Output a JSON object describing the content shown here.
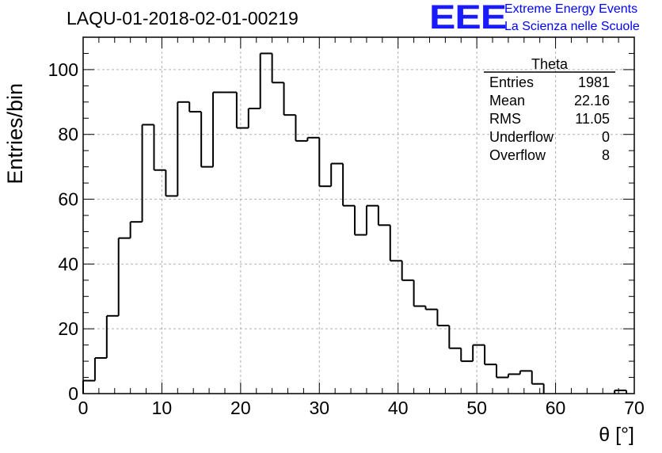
{
  "chart_data": {
    "type": "histogram",
    "title": "LAQU-01-2018-02-01-00219",
    "xlabel": "θ [°]",
    "ylabel": "Entries/bin",
    "xlim": [
      0,
      70
    ],
    "ylim": [
      0,
      110
    ],
    "bin_width": 1.5,
    "bin_start": 0,
    "values": [
      4,
      11,
      24,
      48,
      53,
      83,
      69,
      61,
      90,
      87,
      70,
      93,
      93,
      82,
      88,
      105,
      96,
      86,
      78,
      79,
      64,
      71,
      58,
      49,
      58,
      52,
      41,
      35,
      27,
      26,
      21,
      14,
      10,
      15,
      9,
      5,
      6,
      7,
      3,
      0,
      0,
      0,
      0,
      0,
      0,
      1
    ],
    "x_ticks": [
      0,
      10,
      20,
      30,
      40,
      50,
      60,
      70
    ],
    "x_tick_labels": [
      "0",
      "10",
      "20",
      "30",
      "40",
      "50",
      "60",
      "70"
    ],
    "y_ticks": [
      0,
      20,
      40,
      60,
      80,
      100
    ],
    "y_tick_labels": [
      "0",
      "20",
      "40",
      "60",
      "80",
      "100"
    ],
    "grid": true,
    "stats_box": {
      "name": "Theta",
      "rows": [
        {
          "label": "Entries",
          "value": "1981"
        },
        {
          "label": "Mean",
          "value": "22.16"
        },
        {
          "label": "RMS",
          "value": "11.05"
        },
        {
          "label": "Underflow",
          "value": "0"
        },
        {
          "label": "Overflow",
          "value": "8"
        }
      ],
      "position": "top-right"
    }
  },
  "logo": {
    "text": "EEE",
    "line1": "Extreme Energy Events",
    "line2": "La Scienza nelle Scuole",
    "color": "#0000ff"
  },
  "colors": {
    "line": "#000000",
    "grid": "#b0b0b0"
  }
}
